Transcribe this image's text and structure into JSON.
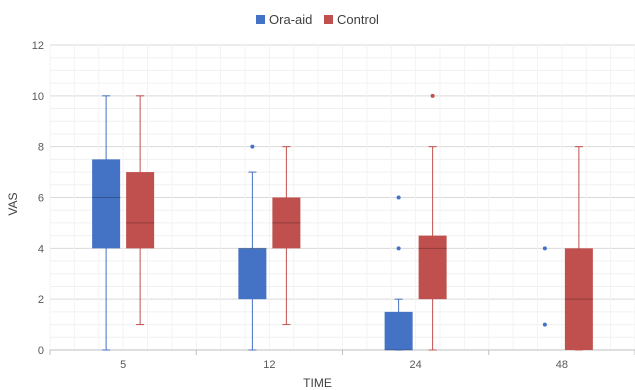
{
  "chart_data": {
    "type": "boxplot",
    "xlabel": "TIME",
    "ylabel": "VAS",
    "categories": [
      "5",
      "12",
      "24",
      "48"
    ],
    "ylim": [
      0,
      12
    ],
    "yticks": [
      0,
      2,
      4,
      6,
      8,
      10,
      12
    ],
    "grid": true,
    "legend_position": "top-center",
    "series": [
      {
        "name": "Ora-aid",
        "color": "#4472C4",
        "boxes": [
          {
            "category": "5",
            "min": 0,
            "q1": 4,
            "median": 6,
            "q3": 7.5,
            "max": 10,
            "outliers": []
          },
          {
            "category": "12",
            "min": 0,
            "q1": 2,
            "median": 4,
            "q3": 4,
            "max": 7,
            "outliers": [
              8
            ]
          },
          {
            "category": "24",
            "min": 0,
            "q1": 0,
            "median": 0,
            "q3": 1.5,
            "max": 2,
            "outliers": [
              4,
              6
            ]
          },
          {
            "category": "48",
            "min": 0,
            "q1": 0,
            "median": 0,
            "q3": 0,
            "max": 0,
            "outliers": [
              1,
              4
            ]
          }
        ]
      },
      {
        "name": "Control",
        "color": "#C0504D",
        "boxes": [
          {
            "category": "5",
            "min": 1,
            "q1": 4,
            "median": 5,
            "q3": 7,
            "max": 10,
            "outliers": []
          },
          {
            "category": "12",
            "min": 1,
            "q1": 4,
            "median": 5,
            "q3": 6,
            "max": 8,
            "outliers": []
          },
          {
            "category": "24",
            "min": 0,
            "q1": 2,
            "median": 4,
            "q3": 4.5,
            "max": 8,
            "outliers": [
              10
            ]
          },
          {
            "category": "48",
            "min": 0,
            "q1": 0,
            "median": 2,
            "q3": 4,
            "max": 8,
            "outliers": []
          }
        ]
      }
    ]
  }
}
